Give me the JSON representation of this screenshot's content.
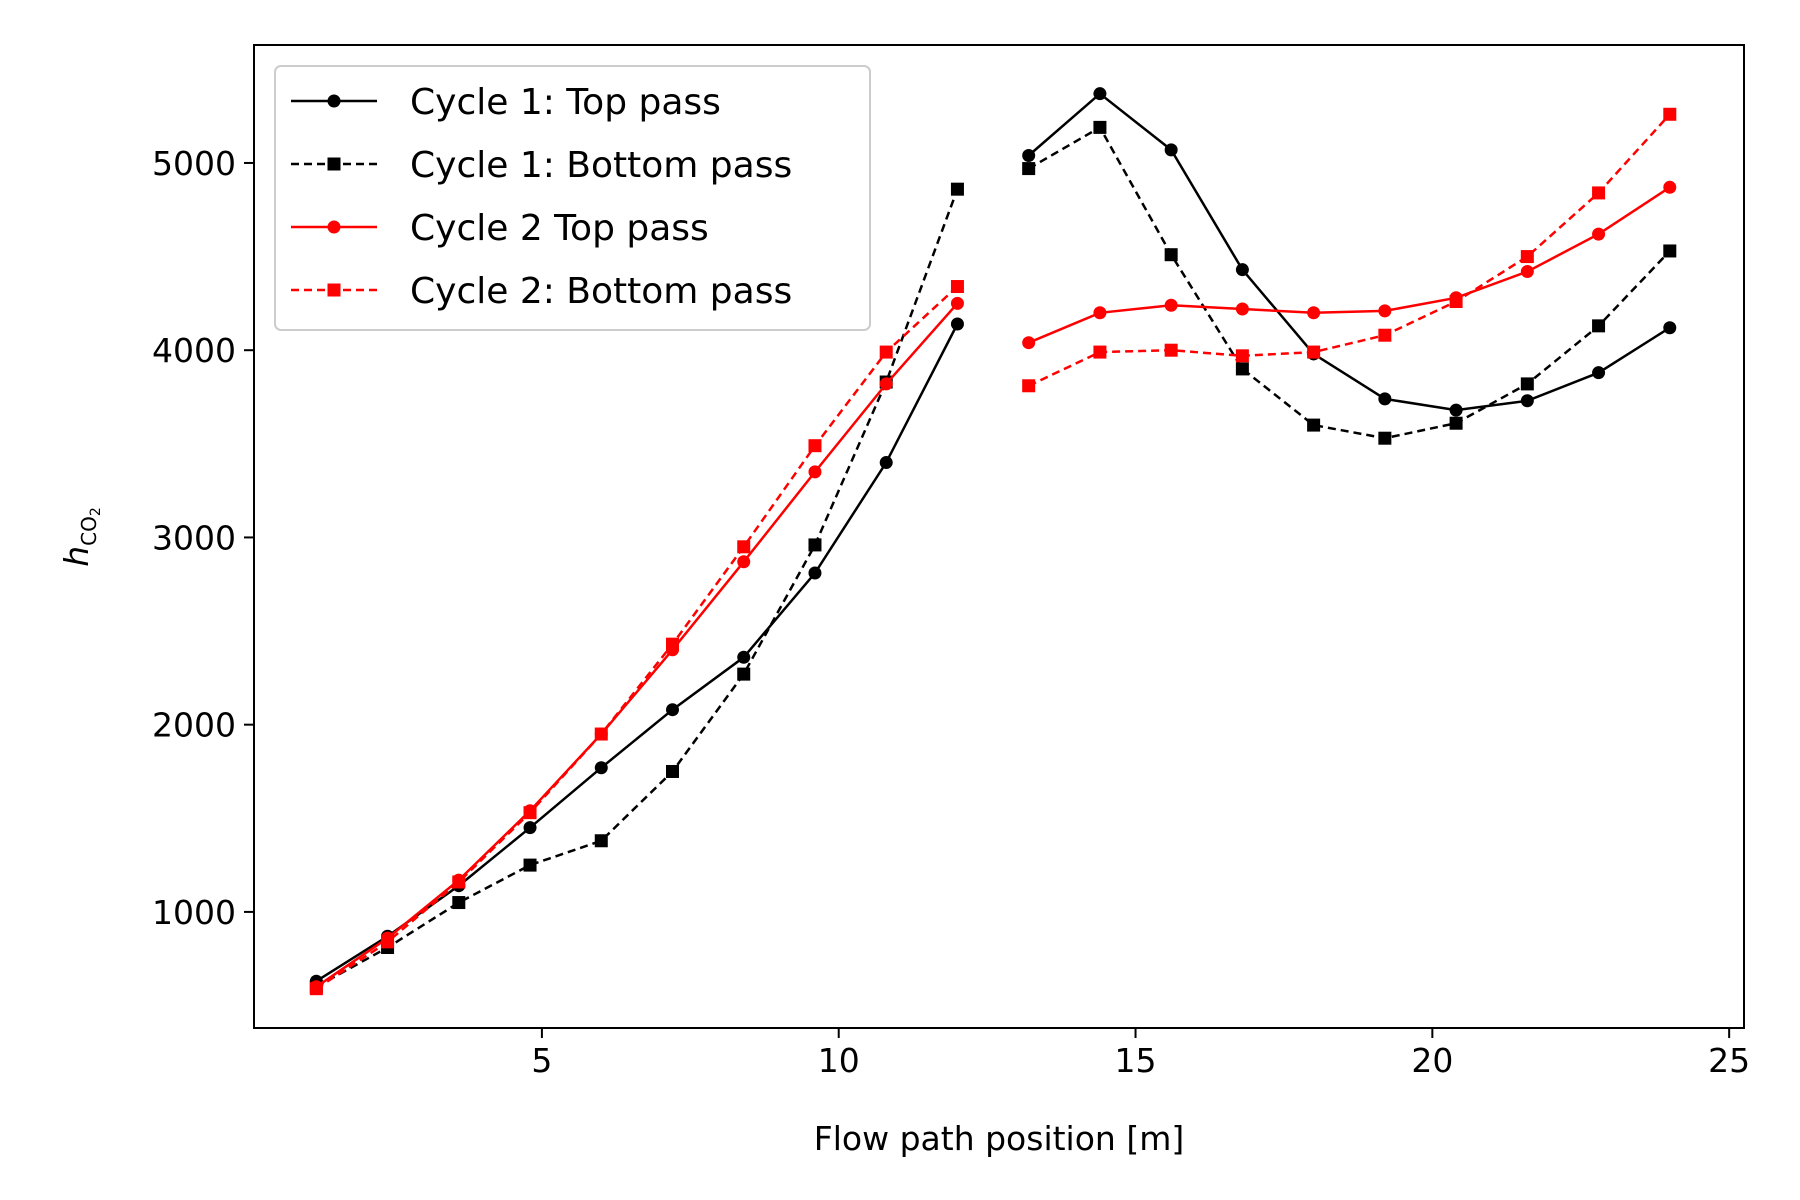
{
  "chart_data": {
    "type": "line",
    "xlabel": "Flow path position [m]",
    "ylabel": "h",
    "ylabel_subscript": "CO",
    "ylabel_subsubscript": "2",
    "xlim": [
      0.15,
      25.25
    ],
    "ylim": [
      380,
      5630
    ],
    "xticks": [
      5,
      10,
      15,
      20,
      25
    ],
    "yticks": [
      1000,
      2000,
      3000,
      4000,
      5000
    ],
    "xtick_labels": [
      "5",
      "10",
      "15",
      "20",
      "25"
    ],
    "ytick_labels": [
      "1000",
      "2000",
      "3000",
      "4000",
      "5000"
    ],
    "grid": false,
    "legend": "top-left",
    "segments_x": [
      [
        1.2,
        2.4,
        3.6,
        4.8,
        6.0,
        7.2,
        8.4,
        9.6,
        10.8,
        12.0
      ],
      [
        13.2,
        14.4,
        15.6,
        16.8,
        18.0,
        19.2,
        20.4,
        21.6,
        22.8,
        24.0
      ]
    ],
    "series": [
      {
        "name": "Cycle 1: Top pass",
        "color": "#000000",
        "line": "solid",
        "marker": "circle",
        "values": [
          [
            630,
            870,
            1140,
            1450,
            1770,
            2080,
            2360,
            2810,
            3400,
            4140
          ],
          [
            5040,
            5370,
            5070,
            4430,
            3980,
            3740,
            3680,
            3730,
            3880,
            4120
          ]
        ]
      },
      {
        "name": "Cycle 1: Bottom pass",
        "color": "#000000",
        "line": "dashed",
        "marker": "square",
        "values": [
          [
            600,
            810,
            1050,
            1250,
            1380,
            1750,
            2270,
            2960,
            3830,
            4860
          ],
          [
            4970,
            5190,
            4510,
            3900,
            3600,
            3530,
            3610,
            3820,
            4130,
            4530
          ]
        ]
      },
      {
        "name": "Cycle 2 Top pass",
        "color": "#ff0000",
        "line": "solid",
        "marker": "circle",
        "values": [
          [
            600,
            860,
            1170,
            1540,
            1950,
            2400,
            2870,
            3350,
            3820,
            4250
          ],
          [
            4040,
            4200,
            4240,
            4220,
            4200,
            4210,
            4280,
            4420,
            4620,
            4870
          ]
        ]
      },
      {
        "name": "Cycle 2: Bottom pass",
        "color": "#ff0000",
        "line": "dashed",
        "marker": "square",
        "values": [
          [
            590,
            840,
            1160,
            1530,
            1950,
            2430,
            2950,
            3490,
            3990,
            4340
          ],
          [
            3810,
            3990,
            4000,
            3970,
            3990,
            4080,
            4260,
            4500,
            4840,
            5260
          ]
        ]
      }
    ]
  }
}
